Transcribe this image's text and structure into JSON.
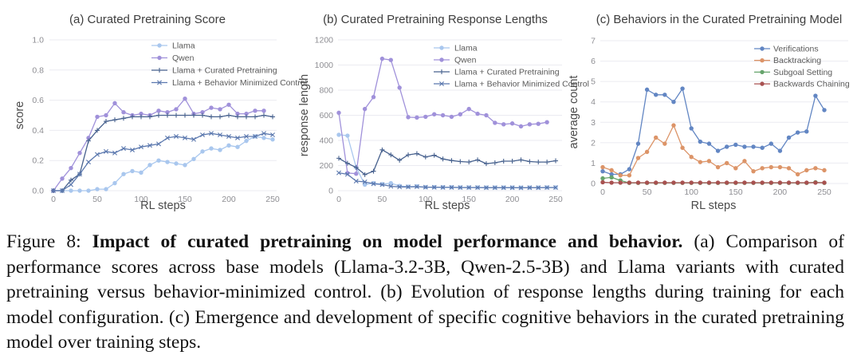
{
  "figure": {
    "caption": {
      "label": "Figure 8: ",
      "bold": "Impact of curated pretraining on model performance and behavior.",
      "body": " (a) Comparison of performance scores across base models (Llama-3.2-3B, Qwen-2.5-3B) and Llama variants with curated pretraining versus behavior-minimized control. (b) Evolution of response lengths during training for each model configuration. (c) Emergence and development of specific cognitive behaviors in the curated pretraining model over training steps."
    }
  },
  "chart_data": [
    {
      "type": "line",
      "slug": "chart-a-curated-pretraining-score",
      "title": "(a) Curated Pretraining Score",
      "xlabel": "RL steps",
      "ylabel": "score",
      "xlim": [
        0,
        250
      ],
      "ylim": [
        0,
        1.0
      ],
      "x_step": 10,
      "xticks": [
        0,
        50,
        100,
        150,
        200,
        250
      ],
      "yticks": [
        0,
        0.2,
        0.4,
        0.6,
        0.8,
        1.0
      ],
      "ytick_labels": [
        "0.0",
        "0.2",
        "0.4",
        "0.6",
        "0.8",
        "1.0"
      ],
      "grid": "horizontal",
      "legend_position": "upper-right-inside",
      "series": [
        {
          "name": "Llama",
          "color": "#a9c7ee",
          "marker": "circle",
          "values": [
            0,
            0,
            0,
            0,
            0,
            0.01,
            0.01,
            0.05,
            0.11,
            0.13,
            0.12,
            0.17,
            0.2,
            0.19,
            0.18,
            0.17,
            0.21,
            0.26,
            0.28,
            0.27,
            0.3,
            0.29,
            0.33,
            0.36,
            0.35,
            0.34
          ]
        },
        {
          "name": "Qwen",
          "color": "#a091da",
          "marker": "circle",
          "values": [
            0,
            0.08,
            0.15,
            0.25,
            0.35,
            0.49,
            0.5,
            0.58,
            0.52,
            0.5,
            0.51,
            0.5,
            0.53,
            0.52,
            0.54,
            0.61,
            0.51,
            0.52,
            0.55,
            0.54,
            0.57,
            0.51,
            0.51,
            0.53,
            0.53
          ]
        },
        {
          "name": "Llama + Curated Pretraining",
          "color": "#47618e",
          "marker": "plus",
          "values": [
            0,
            0,
            0.07,
            0.11,
            0.33,
            0.4,
            0.46,
            0.47,
            0.48,
            0.49,
            0.49,
            0.49,
            0.5,
            0.5,
            0.5,
            0.5,
            0.5,
            0.5,
            0.49,
            0.49,
            0.5,
            0.49,
            0.49,
            0.49,
            0.5,
            0.49
          ]
        },
        {
          "name": "Llama + Behavior Minimized Control",
          "color": "#5b78ae",
          "marker": "x",
          "values": [
            0,
            0,
            0.04,
            0.11,
            0.19,
            0.24,
            0.26,
            0.25,
            0.28,
            0.27,
            0.29,
            0.3,
            0.31,
            0.35,
            0.36,
            0.35,
            0.34,
            0.37,
            0.38,
            0.37,
            0.36,
            0.35,
            0.36,
            0.36,
            0.38,
            0.37
          ]
        }
      ],
      "layout": {
        "x0": 67,
        "x250": 342,
        "top": 50,
        "bottom": 239,
        "grid_left": 62,
        "grid_right": 347,
        "tick_right": 55,
        "ylabel_x": 29,
        "title_x": 185,
        "xlabel_y": 262,
        "legend_x": 190,
        "legend_y": 57,
        "legend_dy": 15.5,
        "legend_text_x": 216
      }
    },
    {
      "type": "line",
      "slug": "chart-b-curated-pretraining-response-lengths",
      "title": "(b) Curated Pretraining Response Lengths",
      "xlabel": "RL steps",
      "ylabel": "response length",
      "xlim": [
        0,
        250
      ],
      "ylim": [
        0,
        1200
      ],
      "x_step": 10,
      "xticks": [
        0,
        50,
        100,
        150,
        200,
        250
      ],
      "yticks": [
        0,
        200,
        400,
        600,
        800,
        1000,
        1200
      ],
      "ytick_labels": [
        "0",
        "200",
        "400",
        "600",
        "800",
        "1000",
        "1200"
      ],
      "grid": "horizontal",
      "legend_position": "upper-right-inside",
      "series": [
        {
          "name": "Llama",
          "color": "#a9c7ee",
          "marker": "circle",
          "values": [
            445,
            438,
            185,
            48,
            60,
            52,
            60,
            38,
            32,
            35,
            28,
            28,
            27,
            27,
            26,
            26,
            26,
            25,
            25,
            25,
            25,
            24,
            25,
            25,
            26,
            26
          ]
        },
        {
          "name": "Qwen",
          "color": "#a091da",
          "marker": "circle",
          "values": [
            620,
            140,
            135,
            650,
            745,
            1050,
            1040,
            820,
            585,
            582,
            588,
            608,
            600,
            588,
            608,
            650,
            612,
            600,
            540,
            528,
            535,
            512,
            528,
            532,
            545
          ]
        },
        {
          "name": "Llama + Curated Pretraining",
          "color": "#47618e",
          "marker": "plus",
          "values": [
            258,
            218,
            185,
            128,
            155,
            325,
            285,
            242,
            285,
            295,
            268,
            282,
            252,
            240,
            232,
            228,
            245,
            215,
            222,
            235,
            235,
            245,
            232,
            228,
            228,
            238
          ]
        },
        {
          "name": "Llama + Behavior Minimized Control",
          "color": "#5b78ae",
          "marker": "x",
          "values": [
            142,
            130,
            76,
            70,
            55,
            48,
            35,
            30,
            30,
            32,
            28,
            27,
            26,
            26,
            25,
            25,
            25,
            24,
            24,
            24,
            24,
            23,
            24,
            24,
            25,
            25
          ]
        }
      ],
      "layout": {
        "x0": 425,
        "x250": 697,
        "top": 50,
        "bottom": 239,
        "grid_left": 424,
        "grid_right": 705,
        "tick_right": 418,
        "ylabel_x": 386,
        "title_x": 546,
        "xlabel_y": 262,
        "legend_x": 544,
        "legend_y": 60,
        "legend_dy": 15,
        "legend_text_x": 570
      }
    },
    {
      "type": "line",
      "slug": "chart-c-behaviors-in-curated-pretraining-model",
      "title": "(c) Behaviors in the Curated Pretraining Model",
      "xlabel": "RL steps",
      "ylabel": "average count",
      "xlim": [
        0,
        250
      ],
      "ylim": [
        0,
        7
      ],
      "x_step": 10,
      "xticks": [
        0,
        50,
        100,
        150,
        200,
        250
      ],
      "yticks": [
        0,
        1,
        2,
        3,
        4,
        5,
        6,
        7
      ],
      "ytick_labels": [
        "0",
        "1",
        "2",
        "3",
        "4",
        "5",
        "6",
        "7"
      ],
      "grid": "horizontal",
      "legend_position": "upper-right-inside",
      "series": [
        {
          "name": "Verifications",
          "color": "#6286c3",
          "marker": "circle",
          "values": [
            0.6,
            0.45,
            0.45,
            0.7,
            1.95,
            4.6,
            4.35,
            4.35,
            4.0,
            4.65,
            2.7,
            2.05,
            1.95,
            1.6,
            1.8,
            1.9,
            1.8,
            1.8,
            1.75,
            1.95,
            1.6,
            2.25,
            2.5,
            2.55,
            4.3,
            3.6
          ]
        },
        {
          "name": "Backtracking",
          "color": "#dc9468",
          "marker": "circle",
          "values": [
            0.8,
            0.65,
            0.4,
            0.4,
            1.25,
            1.55,
            2.25,
            1.95,
            2.85,
            1.75,
            1.3,
            1.05,
            1.1,
            0.8,
            1.0,
            0.75,
            1.1,
            0.6,
            0.75,
            0.8,
            0.8,
            0.75,
            0.45,
            0.65,
            0.75,
            0.65
          ]
        },
        {
          "name": "Subgoal Setting",
          "color": "#66a46c",
          "marker": "circle",
          "values": [
            0.25,
            0.3,
            0.15,
            0.03,
            0.03,
            0.03,
            0.03,
            0.03,
            0.03,
            0.03,
            0.03,
            0.03,
            0.03,
            0.03,
            0.03,
            0.03,
            0.03,
            0.03,
            0.03,
            0.03,
            0.03,
            0.03,
            0.03,
            0.03,
            0.06,
            0.03
          ]
        },
        {
          "name": "Backwards Chaining",
          "color": "#a85150",
          "marker": "circle",
          "values": [
            0.06,
            0.04,
            0.04,
            0.04,
            0.04,
            0.04,
            0.04,
            0.04,
            0.04,
            0.04,
            0.04,
            0.04,
            0.04,
            0.04,
            0.04,
            0.04,
            0.04,
            0.04,
            0.04,
            0.04,
            0.04,
            0.04,
            0.04,
            0.04,
            0.04,
            0.04
          ]
        }
      ],
      "layout": {
        "x0": 756,
        "x250": 1034,
        "top": 51,
        "bottom": 230,
        "grid_left": 753,
        "grid_right": 1064,
        "tick_right": 747,
        "ylabel_x": 724,
        "title_x": 902,
        "xlabel_y": 262,
        "legend_x": 946,
        "legend_y": 61,
        "legend_dy": 14.7,
        "legend_text_x": 970
      }
    }
  ]
}
